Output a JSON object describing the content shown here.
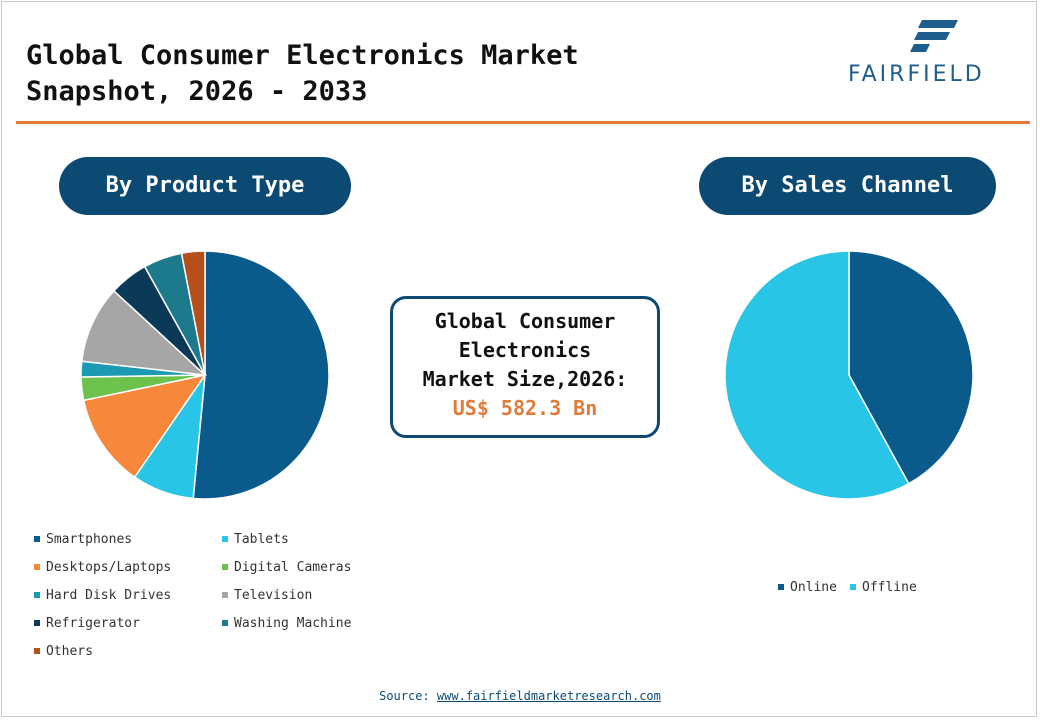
{
  "header": {
    "title": "Global Consumer Electronics Market\nSnapshot, 2026 - 2033",
    "logo_text": "FAIRFIELD"
  },
  "sections": {
    "left_title": "By Product Type",
    "right_title": "By Sales Channel"
  },
  "center": {
    "label": "Global Consumer\nElectronics\nMarket Size,2026:",
    "value": "US$ 582.3 Bn"
  },
  "colors": {
    "accent": "#e07b39",
    "navy": "#0d4a73",
    "brand": "#1d5e8f"
  },
  "chart_data": [
    {
      "type": "pie",
      "title": "By Product Type",
      "categories": [
        "Smartphones",
        "Tablets",
        "Desktops/Laptops",
        "Digital Cameras",
        "Hard Disk Drives",
        "Television",
        "Refrigerator",
        "Washing Machine",
        "Others"
      ],
      "values": [
        51,
        8,
        12,
        3,
        2,
        10,
        5,
        5,
        3
      ],
      "colors": [
        "#0b5a8c",
        "#29c5e6",
        "#f7883b",
        "#6cc24a",
        "#1d9ab3",
        "#a6a6a6",
        "#0b3a59",
        "#1c7a8c",
        "#b5501a"
      ],
      "legend_position": "bottom"
    },
    {
      "type": "pie",
      "title": "By Sales Channel",
      "categories": [
        "Online",
        "Offline"
      ],
      "values": [
        42,
        58
      ],
      "colors": [
        "#0b5a8c",
        "#29c5e6"
      ],
      "legend_position": "bottom"
    }
  ],
  "source": {
    "label": "Source:",
    "link": "www.fairfieldmarketresearch.com"
  }
}
